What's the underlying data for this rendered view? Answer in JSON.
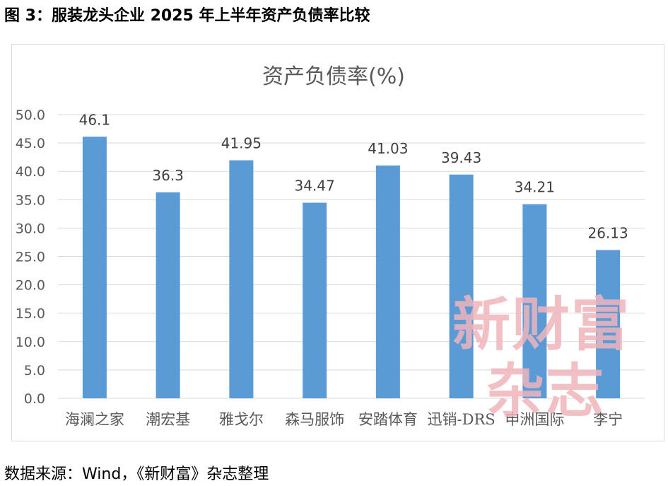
{
  "figure_title": "图 3：服装龙头企业 2025 年上半年资产负债率比较",
  "source_note": "数据来源：Wind，《新财富》杂志整理",
  "watermark": {
    "line1": "新财富",
    "line2": "杂志"
  },
  "colors": {
    "bar": "#5b9bd5",
    "grid": "#d9d9d9",
    "axis_text": "#595959",
    "watermark": "#f0b4bc"
  },
  "chart_data": {
    "type": "bar",
    "title": "资产负债率(%)",
    "categories": [
      "海澜之家",
      "潮宏基",
      "雅戈尔",
      "森马服饰",
      "安踏体育",
      "迅销-DRS",
      "申洲国际",
      "李宁"
    ],
    "values": [
      46.1,
      36.3,
      41.95,
      34.47,
      41.03,
      39.43,
      34.21,
      26.13
    ],
    "data_labels": [
      "46.1",
      "36.3",
      "41.95",
      "34.47",
      "41.03",
      "39.43",
      "34.21",
      "26.13"
    ],
    "y_ticks": [
      "0.0",
      "5.0",
      "10.0",
      "15.0",
      "20.0",
      "25.0",
      "30.0",
      "35.0",
      "40.0",
      "45.0",
      "50.0"
    ],
    "ylim": [
      0,
      50
    ],
    "grid": true,
    "legend": "none"
  }
}
